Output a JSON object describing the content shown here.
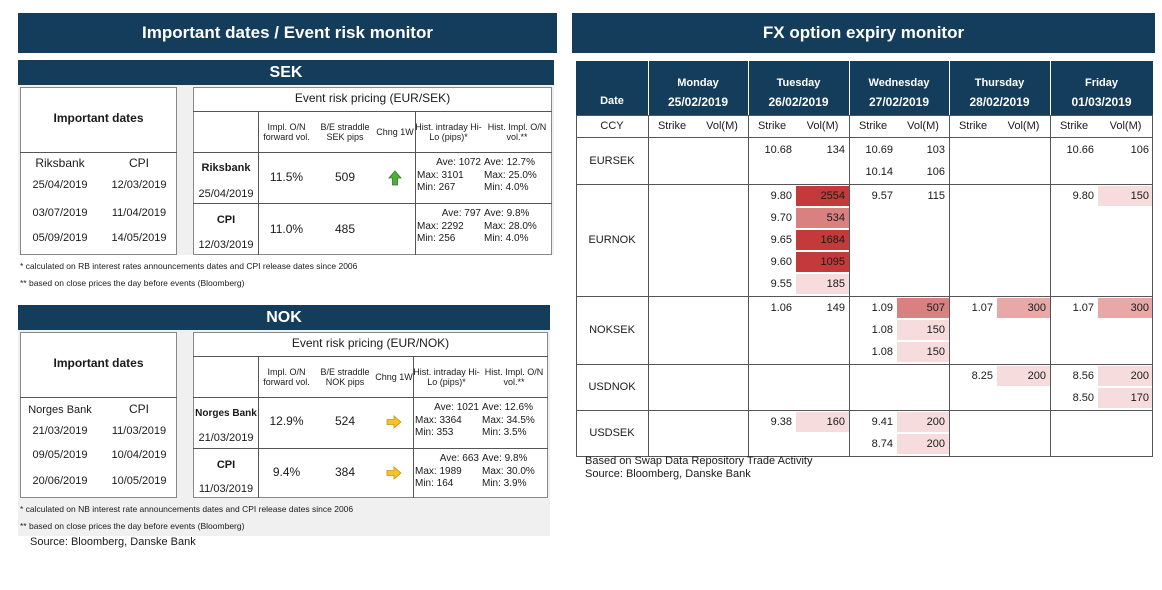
{
  "left_title": "Important dates / Event risk monitor",
  "right_title": "FX option expiry monitor",
  "sek": {
    "header": "SEK",
    "important_dates_label": "Important dates",
    "event_risk_title": "Event risk pricing (EUR/SEK)",
    "col_headers": [
      "Impl. O/N forward vol.",
      "B/E straddle SEK pips",
      "Chng 1W",
      "Hist. intraday Hi-Lo (pips)*",
      "Hist. Impl. O/N vol.**"
    ],
    "dates_headers": [
      "Riksbank",
      "CPI"
    ],
    "dates_rows": [
      [
        "25/04/2019",
        "12/03/2019"
      ],
      [
        "03/07/2019",
        "11/04/2019"
      ],
      [
        "05/09/2019",
        "14/05/2019"
      ]
    ],
    "events": [
      {
        "name": "Riksbank",
        "date": "25/04/2019",
        "vol": "11.5%",
        "be": "509",
        "chng": "up-arrow",
        "hilo": [
          "Ave: 1072",
          "Max: 3101",
          "Min: 267"
        ],
        "ivol": [
          "Ave: 12.7%",
          "Max: 25.0%",
          "Min: 4.0%"
        ]
      },
      {
        "name": "CPI",
        "date": "12/03/2019",
        "vol": "11.0%",
        "be": "485",
        "chng": "",
        "hilo": [
          "Ave: 797",
          "Max: 2292",
          "Min: 256"
        ],
        "ivol": [
          "Ave: 9.8%",
          "Max: 28.0%",
          "Min: 4.0%"
        ]
      }
    ],
    "footnote1": "* calculated on RB interest rates announcements dates and CPI release dates since 2006",
    "footnote2": "** based on close prices the day before events (Bloomberg)"
  },
  "nok": {
    "header": "NOK",
    "important_dates_label": "Important dates",
    "event_risk_title": "Event risk pricing (EUR/NOK)",
    "col_headers": [
      "Impl. O/N forward vol.",
      "B/E straddle NOK pips",
      "Chng 1W",
      "Hist. intraday Hi-Lo (pips)*",
      "Hist. Impl. O/N vol.**"
    ],
    "dates_headers": [
      "Norges Bank",
      "CPI"
    ],
    "dates_rows": [
      [
        "21/03/2019",
        "11/03/2019"
      ],
      [
        "09/05/2019",
        "10/04/2019"
      ],
      [
        "20/06/2019",
        "10/05/2019"
      ]
    ],
    "events": [
      {
        "name": "Norges Bank",
        "date": "21/03/2019",
        "vol": "12.9%",
        "be": "524",
        "chng": "right-arrow",
        "hilo": [
          "Ave: 1021",
          "Max: 3364",
          "Min: 353"
        ],
        "ivol": [
          "Ave: 12.6%",
          "Max: 34.5%",
          "Min: 3.5%"
        ]
      },
      {
        "name": "CPI",
        "date": "11/03/2019",
        "vol": "9.4%",
        "be": "384",
        "chng": "right-arrow",
        "hilo": [
          "Ave: 663",
          "Max: 1989",
          "Min: 164"
        ],
        "ivol": [
          "Ave: 9.8%",
          "Max: 30.0%",
          "Min: 3.9%"
        ]
      }
    ],
    "footnote1": "* calculated on NB interest rate announcements dates and CPI release dates since 2006",
    "footnote2": "** based on close prices the day before events (Bloomberg)"
  },
  "left_source": "Source: Bloomberg, Danske Bank",
  "fx": {
    "date_label": "Date",
    "ccy_label": "CCY",
    "strike_label": "Strike",
    "vol_label": "Vol(M)",
    "days": [
      {
        "name": "Monday",
        "date": "25/02/2019"
      },
      {
        "name": "Tuesday",
        "date": "26/02/2019"
      },
      {
        "name": "Wednesday",
        "date": "27/02/2019"
      },
      {
        "name": "Thursday",
        "date": "28/02/2019"
      },
      {
        "name": "Friday",
        "date": "01/03/2019"
      }
    ],
    "pairs": [
      {
        "ccy": "EURSEK",
        "rows": 2,
        "cells": [
          [],
          [
            [
              "10.68",
              "134"
            ]
          ],
          [
            [
              "10.69",
              "103"
            ],
            [
              "10.14",
              "106"
            ]
          ],
          [],
          [
            [
              "10.66",
              "106"
            ]
          ]
        ]
      },
      {
        "ccy": "EURNOK",
        "rows": 5,
        "cells": [
          [],
          [
            [
              "9.80",
              "2554"
            ],
            [
              "9.70",
              "534"
            ],
            [
              "9.65",
              "1684"
            ],
            [
              "9.60",
              "1095"
            ],
            [
              "9.55",
              "185"
            ]
          ],
          [
            [
              "9.57",
              "115"
            ]
          ],
          [],
          [
            [
              "9.80",
              "150"
            ]
          ]
        ]
      },
      {
        "ccy": "NOKSEK",
        "rows": 3,
        "cells": [
          [],
          [
            [
              "1.06",
              "149"
            ]
          ],
          [
            [
              "1.09",
              "507"
            ],
            [
              "1.08",
              "150"
            ],
            [
              "1.08",
              "150"
            ]
          ],
          [
            [
              "1.07",
              "300"
            ]
          ],
          [
            [
              "1.07",
              "300"
            ]
          ]
        ]
      },
      {
        "ccy": "USDNOK",
        "rows": 2,
        "cells": [
          [],
          [],
          [],
          [
            [
              "8.25",
              "200"
            ]
          ],
          [
            [
              "8.56",
              "200"
            ],
            [
              "8.50",
              "170"
            ]
          ]
        ]
      },
      {
        "ccy": "USDSEK",
        "rows": 2,
        "cells": [
          [],
          [
            [
              "9.38",
              "160"
            ]
          ],
          [
            [
              "9.41",
              "200"
            ],
            [
              "8.74",
              "200"
            ]
          ],
          [],
          []
        ]
      }
    ],
    "note": "Based on Swap Data Repository Trade Activity",
    "source": "Source: Bloomberg, Danske Bank",
    "colors": {
      "low": "#f6dcdc",
      "mid": "#e8a8a8",
      "high": "#d98080",
      "max": "#c43a3a"
    }
  }
}
